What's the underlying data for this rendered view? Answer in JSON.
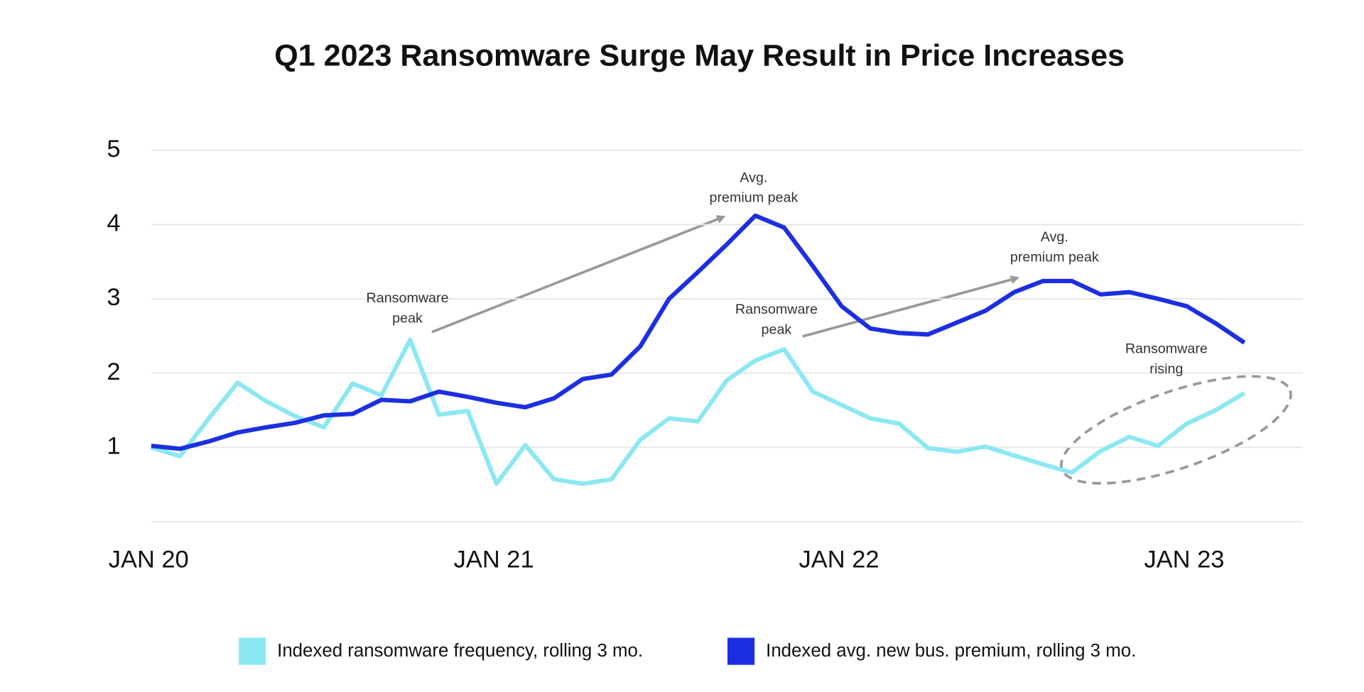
{
  "chart_data": {
    "type": "line",
    "title": "Q1 2023 Ransomware Surge May Result in Price Increases",
    "categories": [
      "JAN 20",
      null,
      null,
      null,
      null,
      null,
      null,
      null,
      null,
      null,
      null,
      null,
      "JAN 21",
      null,
      null,
      null,
      null,
      null,
      null,
      null,
      null,
      null,
      null,
      null,
      "JAN 22",
      null,
      null,
      null,
      null,
      null,
      null,
      null,
      null,
      null,
      null,
      null,
      "JAN 23",
      null,
      null
    ],
    "series": [
      {
        "name": "Indexed ransomware frequency, rolling 3 mo.",
        "color": "#8be8f2",
        "values": [
          1.0,
          0.88,
          1.39,
          1.87,
          1.62,
          1.42,
          1.27,
          1.86,
          1.7,
          2.45,
          1.44,
          1.49,
          0.51,
          1.03,
          0.57,
          0.51,
          0.57,
          1.1,
          1.39,
          1.35,
          1.9,
          2.17,
          2.32,
          1.75,
          1.57,
          1.39,
          1.32,
          0.99,
          0.94,
          1.01,
          0.89,
          0.77,
          0.66,
          0.95,
          1.14,
          1.02,
          1.32,
          1.5,
          1.73
        ]
      },
      {
        "name": "Indexed avg. new bus. premium, rolling 3 mo.",
        "color": "#1c2fe0",
        "values": [
          1.02,
          0.98,
          1.08,
          1.2,
          1.27,
          1.33,
          1.43,
          1.45,
          1.64,
          1.62,
          1.75,
          1.68,
          1.6,
          1.54,
          1.66,
          1.92,
          1.98,
          2.36,
          3.0,
          3.36,
          3.73,
          4.12,
          3.96,
          3.44,
          2.9,
          2.6,
          2.54,
          2.52,
          2.68,
          2.84,
          3.09,
          3.24,
          3.24,
          3.06,
          3.09,
          3.0,
          2.9,
          2.67,
          2.41
        ]
      }
    ],
    "ylim": [
      0,
      5
    ],
    "yticks": [
      1,
      2,
      3,
      4,
      5
    ],
    "grid": true,
    "annotations": [
      {
        "lines": [
          "Ransomware",
          "peak"
        ]
      },
      {
        "lines": [
          "Avg.",
          "premium peak"
        ]
      },
      {
        "lines": [
          "Ransomware",
          "peak"
        ]
      },
      {
        "lines": [
          "Avg.",
          "premium peak"
        ]
      },
      {
        "lines": [
          "Ransomware",
          "rising"
        ]
      }
    ],
    "legend": "bottom"
  }
}
